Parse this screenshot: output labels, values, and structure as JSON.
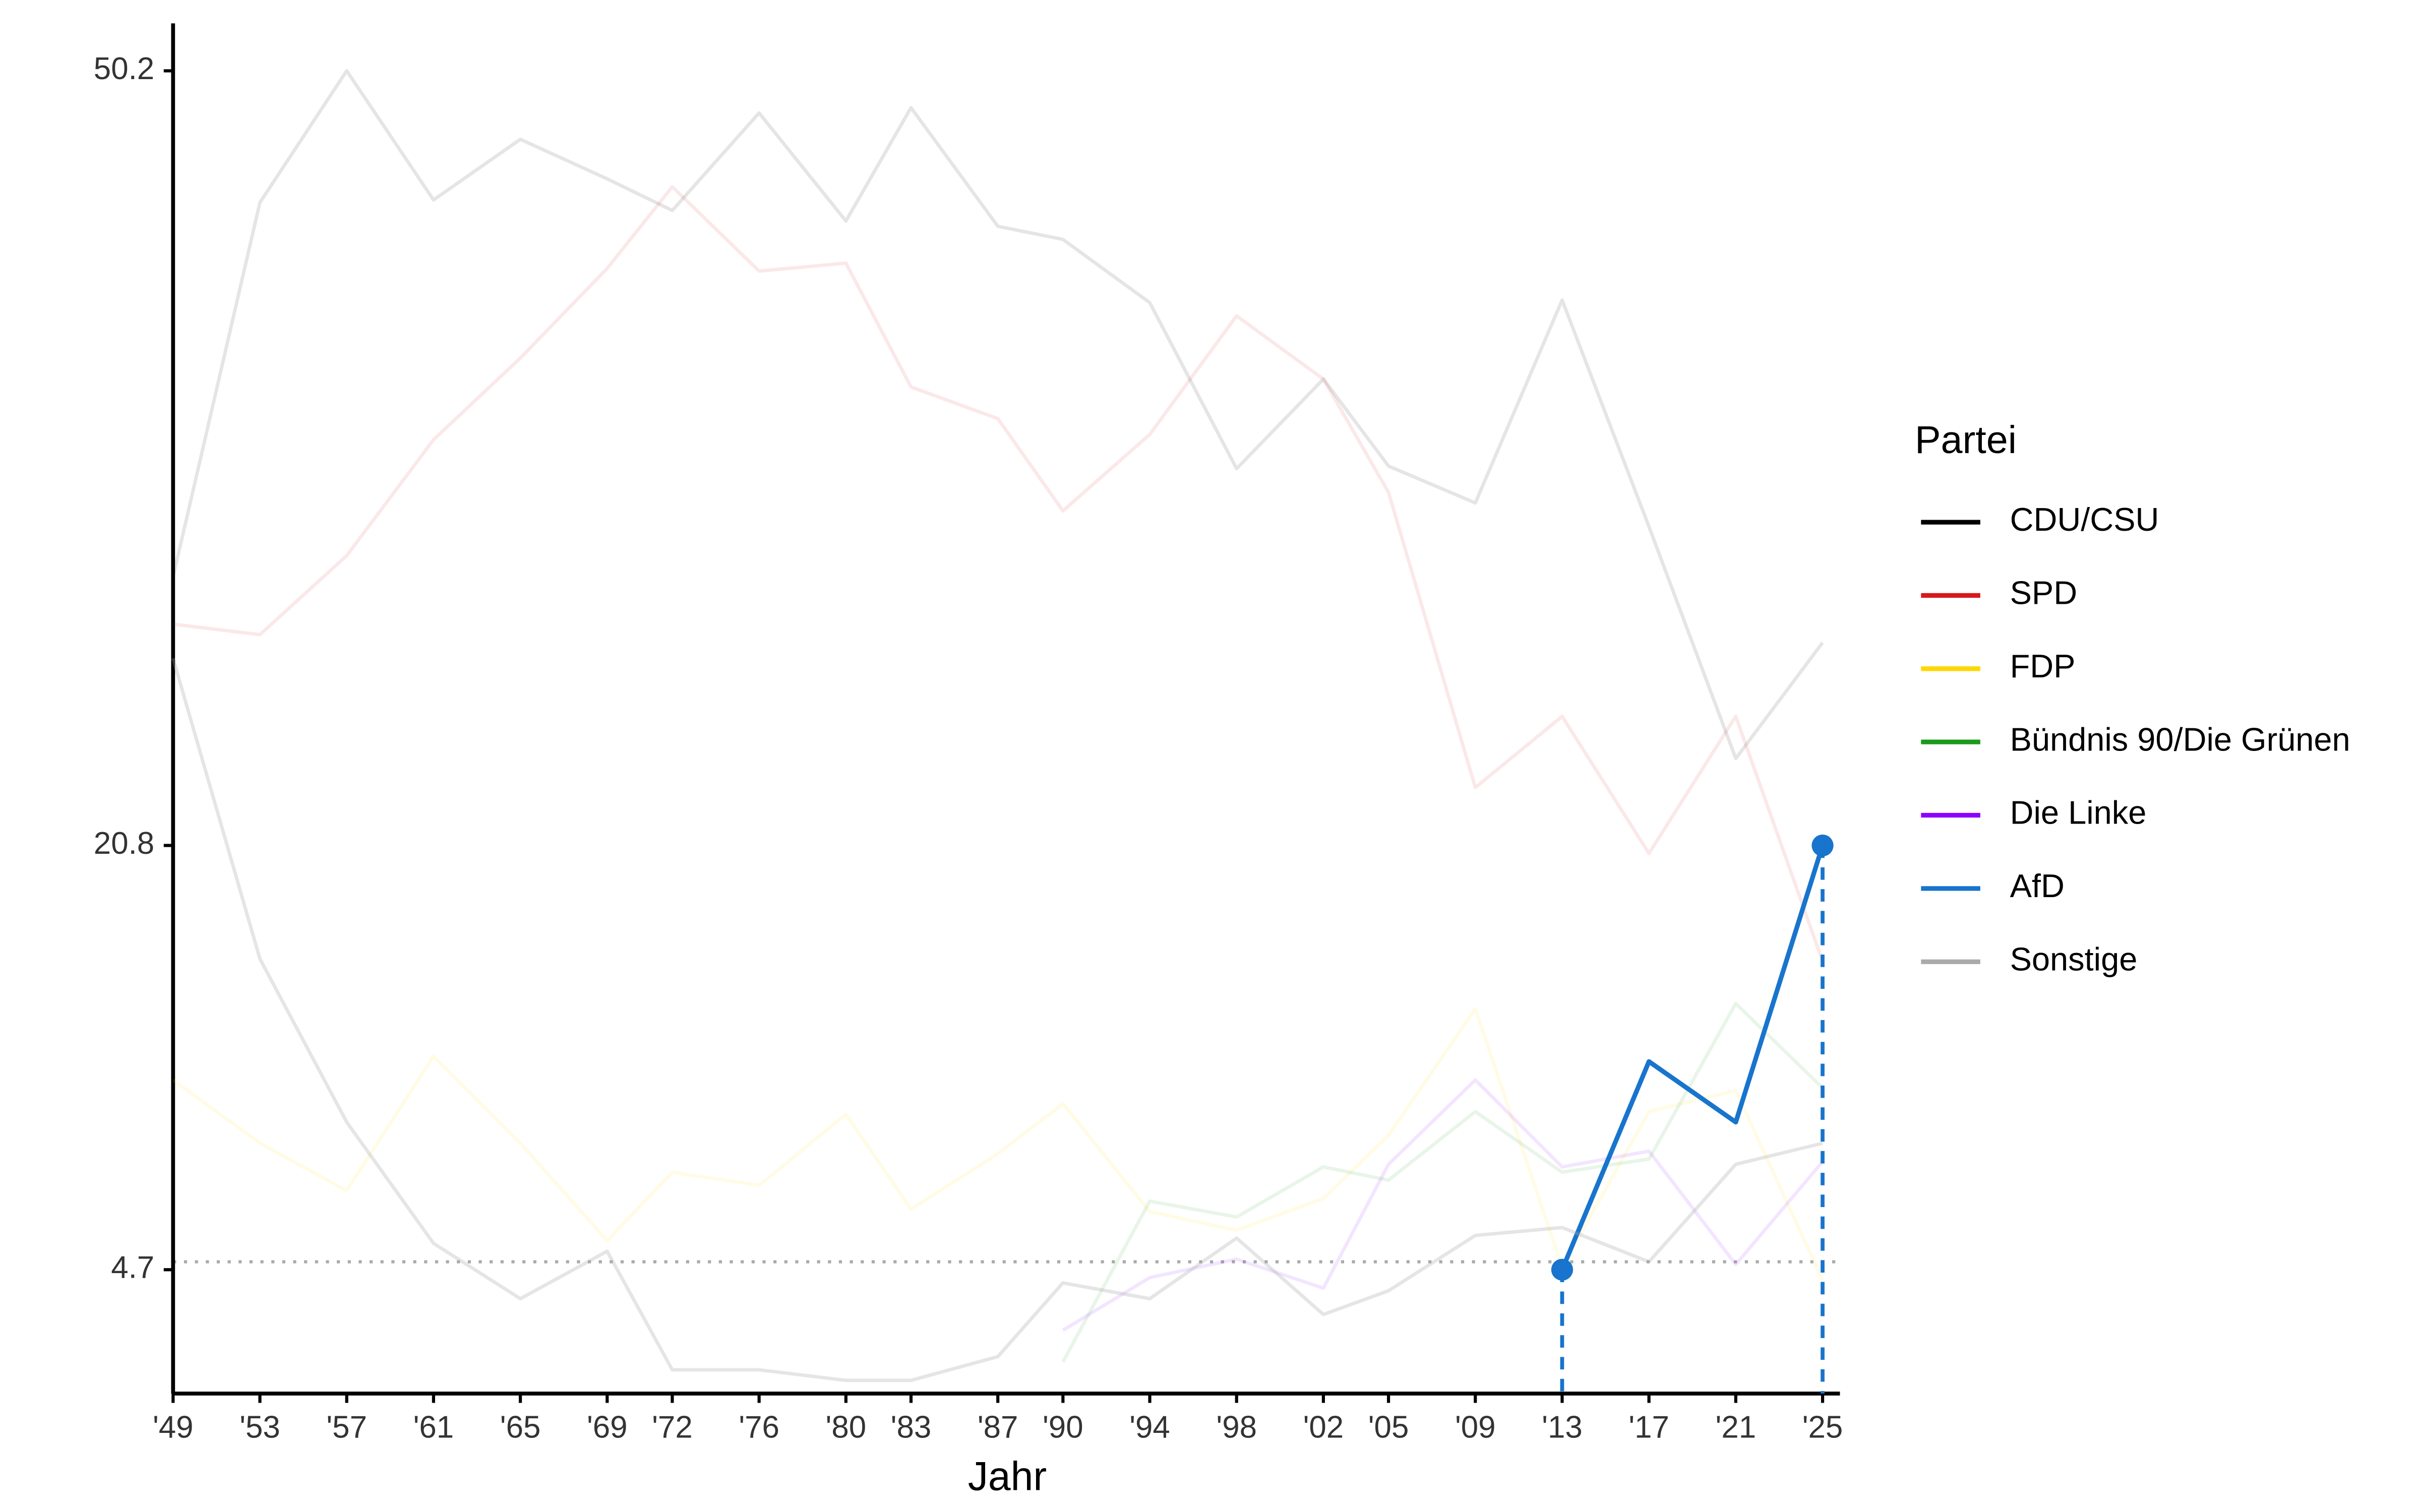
{
  "chart_data": {
    "type": "line",
    "x_label": "Jahr",
    "legend_title": "Partei",
    "legend": "right",
    "x": [
      1949,
      1953,
      1957,
      1961,
      1965,
      1969,
      1972,
      1976,
      1980,
      1983,
      1987,
      1990,
      1994,
      1998,
      2002,
      2005,
      2009,
      2013,
      2017,
      2021,
      2025
    ],
    "xlim": [
      1949,
      2025.8
    ],
    "xticks": [
      {
        "value": 1949,
        "label": "'49"
      },
      {
        "value": 1953,
        "label": "'53"
      },
      {
        "value": 1957,
        "label": "'57"
      },
      {
        "value": 1961,
        "label": "'61"
      },
      {
        "value": 1965,
        "label": "'65"
      },
      {
        "value": 1969,
        "label": "'69"
      },
      {
        "value": 1972,
        "label": "'72"
      },
      {
        "value": 1976,
        "label": "'76"
      },
      {
        "value": 1980,
        "label": "'80"
      },
      {
        "value": 1983,
        "label": "'83"
      },
      {
        "value": 1987,
        "label": "'87"
      },
      {
        "value": 1990,
        "label": "'90"
      },
      {
        "value": 1994,
        "label": "'94"
      },
      {
        "value": 1998,
        "label": "'98"
      },
      {
        "value": 2002,
        "label": "'02"
      },
      {
        "value": 2005,
        "label": "'05"
      },
      {
        "value": 2009,
        "label": "'09"
      },
      {
        "value": 2013,
        "label": "'13"
      },
      {
        "value": 2017,
        "label": "'17"
      },
      {
        "value": 2021,
        "label": "'21"
      },
      {
        "value": 2025,
        "label": "'25"
      }
    ],
    "ylim": [
      0,
      52
    ],
    "yticks": [
      4.7,
      20.8,
      50.2
    ],
    "reference_line": 5,
    "series": [
      {
        "name": "CDU/CSU",
        "color": "#000000",
        "opacity": 0.1,
        "values": [
          31.0,
          45.2,
          50.2,
          45.3,
          47.6,
          46.1,
          44.9,
          48.6,
          44.5,
          48.8,
          44.3,
          43.8,
          41.4,
          35.1,
          38.5,
          35.2,
          33.8,
          41.5,
          32.9,
          24.1,
          28.5
        ]
      },
      {
        "name": "SPD",
        "color": "#d7191c",
        "opacity": 0.1,
        "values": [
          29.2,
          28.8,
          31.8,
          36.2,
          39.3,
          42.7,
          45.8,
          42.6,
          42.9,
          38.2,
          37.0,
          33.5,
          36.4,
          40.9,
          38.5,
          34.2,
          23.0,
          25.7,
          20.5,
          25.7,
          16.4
        ]
      },
      {
        "name": "FDP",
        "color": "#ffd700",
        "opacity": 0.1,
        "values": [
          11.9,
          9.5,
          7.7,
          12.8,
          9.5,
          5.8,
          8.4,
          7.9,
          10.6,
          7.0,
          9.1,
          11.0,
          6.9,
          6.2,
          7.4,
          9.8,
          14.6,
          4.8,
          10.7,
          11.5,
          4.3
        ]
      },
      {
        "name": "Bündnis 90/Die Grünen",
        "color": "#1a9a1a",
        "opacity": 0.1,
        "values": [
          null,
          null,
          null,
          null,
          null,
          null,
          null,
          null,
          null,
          null,
          null,
          1.2,
          7.3,
          6.7,
          8.6,
          8.1,
          10.7,
          8.4,
          8.9,
          14.8,
          11.6
        ]
      },
      {
        "name": "Die Linke",
        "color": "#8b00ff",
        "opacity": 0.1,
        "values": [
          null,
          null,
          null,
          null,
          null,
          null,
          null,
          null,
          null,
          null,
          null,
          2.4,
          4.4,
          5.1,
          4.0,
          8.7,
          11.9,
          8.6,
          9.2,
          4.9,
          8.8
        ]
      },
      {
        "name": "AfD",
        "color": "#1874cd",
        "opacity": 1,
        "highlight": true,
        "values": [
          null,
          null,
          null,
          null,
          null,
          null,
          null,
          null,
          null,
          null,
          null,
          null,
          null,
          null,
          null,
          null,
          null,
          4.7,
          12.6,
          10.3,
          20.8
        ]
      },
      {
        "name": "Sonstige",
        "color": "#aaaaaa",
        "opacity": 0.3,
        "values": [
          27.9,
          16.5,
          10.3,
          5.7,
          3.6,
          5.4,
          0.9,
          0.9,
          0.5,
          0.5,
          1.4,
          4.2,
          3.6,
          5.9,
          3.0,
          3.9,
          6.0,
          6.3,
          5.0,
          8.7,
          9.5
        ]
      }
    ]
  }
}
